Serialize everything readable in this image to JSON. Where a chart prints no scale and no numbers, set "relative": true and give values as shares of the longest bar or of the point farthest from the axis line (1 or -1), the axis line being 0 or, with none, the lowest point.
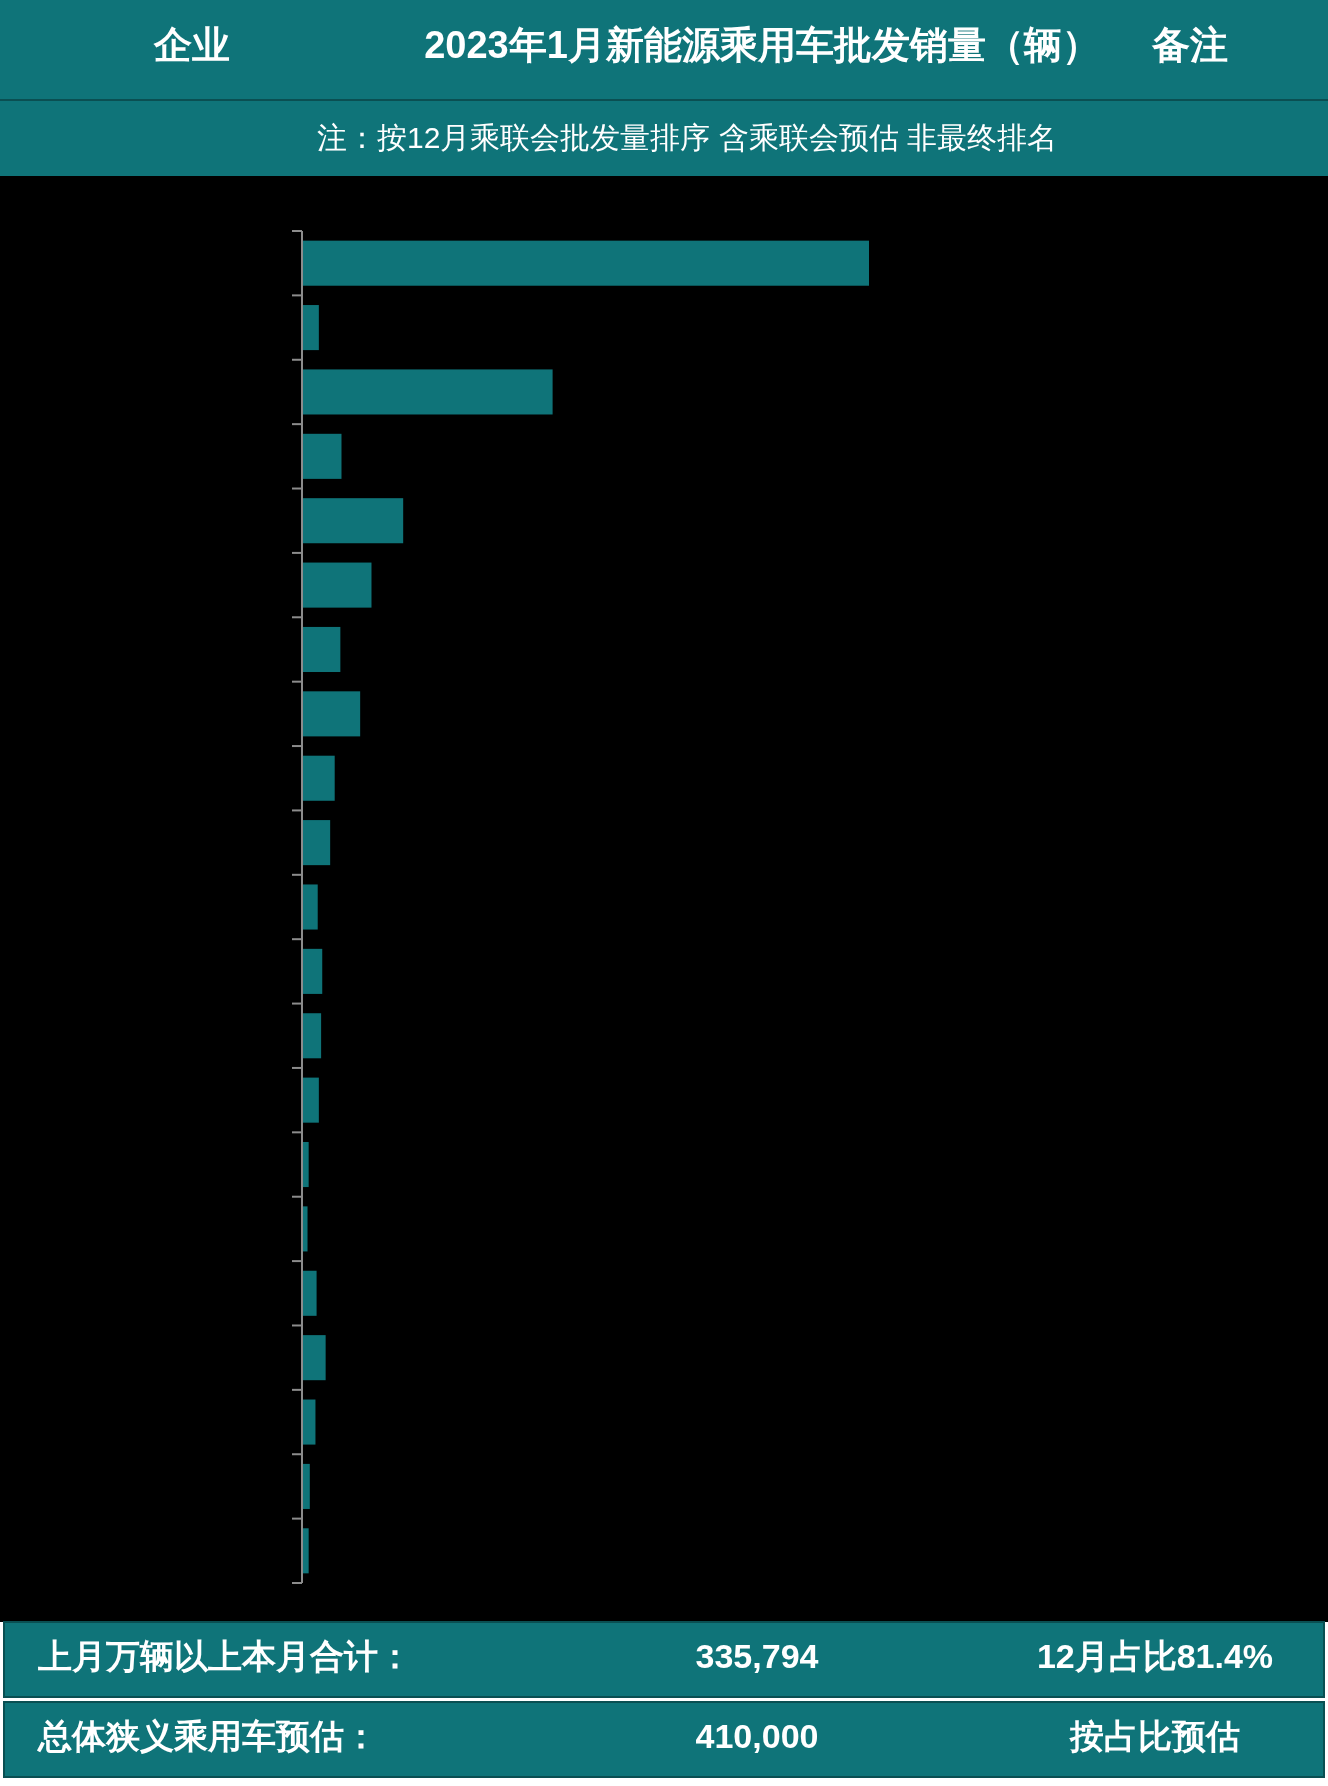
{
  "chart_data": {
    "type": "bar",
    "orientation": "horizontal",
    "relative": true,
    "title": "2023年1月新能源乘用车批发销量（辆）",
    "subtitle": "注：按12月乘联会批发量排序 含乘联会预估 非最终排名",
    "annotations": [
      "企业",
      "备注",
      "上月万辆以上本月合计：",
      "335,794",
      "12月占比81.4%",
      "总体狭义乘用车预估：",
      "410,000",
      "按占比预估"
    ],
    "categories": [
      null,
      null,
      null,
      null,
      null,
      null,
      null,
      null,
      null,
      null,
      null,
      null,
      null,
      null,
      null,
      null,
      null,
      null,
      null,
      null,
      null
    ],
    "values": [
      1,
      0.028,
      0.441,
      0.068,
      0.177,
      0.121,
      0.066,
      0.101,
      0.056,
      0.048,
      0.026,
      0.034,
      0.032,
      0.028,
      0.01,
      0.008,
      0.024,
      0.04,
      0.022,
      0.012,
      0.01
    ],
    "color": "#0f7479"
  }
}
